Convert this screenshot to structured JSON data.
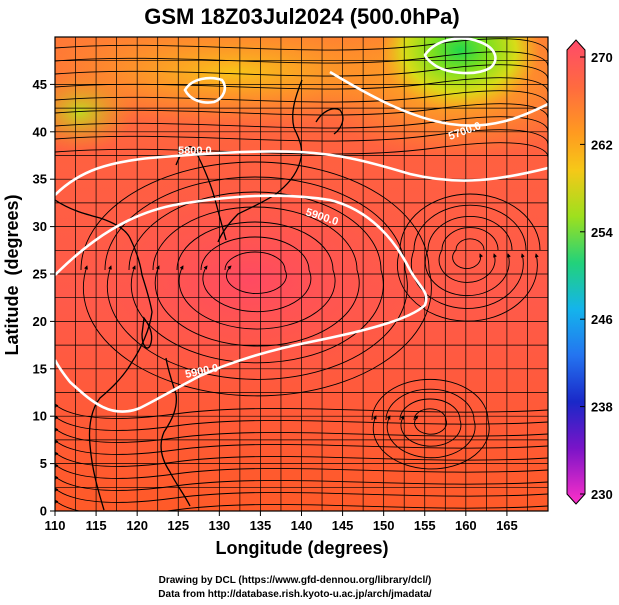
{
  "chart_data": {
    "type": "heatmap",
    "title": "GSM 18Z03Jul2024 (500.0hPa)",
    "xlabel": "Longitude (degrees)",
    "ylabel": "Latitude  (degrees)",
    "xlim": [
      110,
      170
    ],
    "ylim": [
      0,
      50
    ],
    "xticks": [
      "110",
      "115",
      "120",
      "125",
      "130",
      "135",
      "140",
      "145",
      "150",
      "155",
      "160",
      "165"
    ],
    "yticks": [
      "0",
      "5",
      "10",
      "15",
      "20",
      "25",
      "30",
      "35",
      "40",
      "45"
    ],
    "colorbar": {
      "range": [
        230,
        270
      ],
      "ticks": [
        "270",
        "262",
        "254",
        "246",
        "238",
        "230"
      ],
      "colors": [
        "#ff4a6a",
        "#ff6a40",
        "#ff9a20",
        "#f6c818",
        "#9ee01e",
        "#22d27a",
        "#14b4ec",
        "#2474f0",
        "#1a28c8",
        "#4a14c4",
        "#a010c8",
        "#ff30c8"
      ]
    },
    "contours": [
      {
        "label": "5800.0"
      },
      {
        "label": "5900.0"
      },
      {
        "label": "5900.0"
      },
      {
        "label": "5700.0"
      }
    ],
    "overlays": [
      "coastlines",
      "wind streamlines"
    ]
  },
  "footer": {
    "line1": "Drawing by DCL (https://www.gfd-dennou.org/library/dcl/)",
    "line2": "Data from http://database.rish.kyoto-u.ac.jp/arch/jmadata/"
  }
}
